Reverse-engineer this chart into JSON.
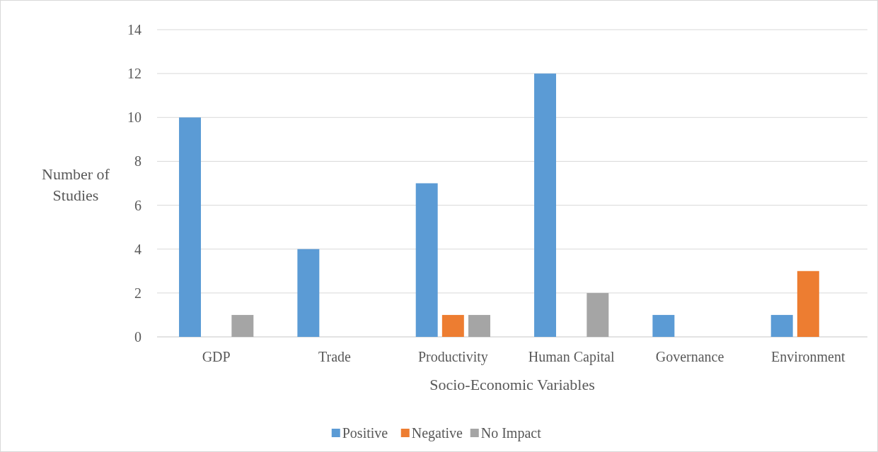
{
  "chart_data": {
    "type": "bar",
    "xlabel": "Socio-Economic Variables",
    "ylabel": "Number of Studies",
    "categories": [
      "GDP",
      "Trade",
      "Productivity",
      "Human Capital",
      "Governance",
      "Environment"
    ],
    "series": [
      {
        "name": "Positive",
        "color": "#5b9bd5",
        "values": [
          10,
          4,
          7,
          12,
          1,
          1
        ]
      },
      {
        "name": "Negative",
        "color": "#ed7d31",
        "values": [
          0,
          0,
          1,
          0,
          0,
          3
        ]
      },
      {
        "name": "No Impact",
        "color": "#a5a5a5",
        "values": [
          1,
          0,
          1,
          2,
          0,
          0
        ]
      }
    ],
    "ylim": [
      0,
      14
    ],
    "yticks": [
      0,
      2,
      4,
      6,
      8,
      10,
      12,
      14
    ],
    "grid": "y",
    "legend": "bottom"
  }
}
